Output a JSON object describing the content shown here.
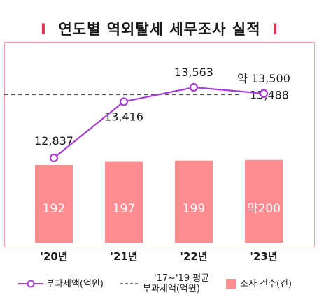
{
  "title": "연도별 역외탈세 세무조사 실적",
  "title_bar": "I",
  "chart_data": {
    "type": "bar",
    "categories": [
      "'20년",
      "'21년",
      "'22년",
      "'23년"
    ],
    "bars": {
      "name": "조사 건수(건)",
      "values": [
        192,
        197,
        199,
        200
      ],
      "labels": [
        "192",
        "197",
        "199",
        "약200"
      ],
      "color": "#ff8c91"
    },
    "line": {
      "name": "부과세액(억원)",
      "values": [
        12837,
        13416,
        13563,
        13500
      ],
      "labels": [
        "12,837",
        "13,416",
        "13,563",
        "약 13,500"
      ],
      "color": "#a83cd9"
    },
    "reference": {
      "name": "'17~'19 평균 부과세액(억원)",
      "value": 13488,
      "label": "13,488",
      "color": "#555555"
    }
  },
  "legend": {
    "line_label": "부과세액(억원)",
    "reference_label_line1": "'17~'19 평균",
    "reference_label_line2": "부과세액(억원)",
    "bar_label": "조사 건수(건)"
  },
  "colors": {
    "accent": "#e0314f",
    "frame": "#f0a0a8",
    "bar": "#ff8c91",
    "line": "#a83cd9",
    "reference": "#555555"
  }
}
